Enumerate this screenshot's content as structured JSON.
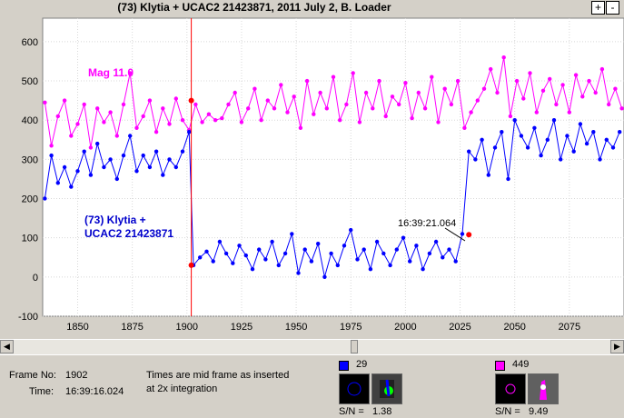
{
  "window": {
    "title": "(73) Klytia + UCAC2 21423871,   2011 July 2,   B. Loader"
  },
  "toolbar": {
    "plus_label": "+",
    "minus_label": "-"
  },
  "chart_data": {
    "type": "line",
    "xlim": [
      1834,
      2100
    ],
    "ylim": [
      -100,
      660
    ],
    "xticks": [
      1850,
      1875,
      1900,
      1925,
      1950,
      1975,
      2000,
      2025,
      2050,
      2075
    ],
    "yticks": [
      -100,
      0,
      100,
      200,
      300,
      400,
      500,
      600
    ],
    "grid": true,
    "series": [
      {
        "name": "Mag 11.0",
        "color": "#ff00ff",
        "x": [
          1835,
          1838,
          1841,
          1844,
          1847,
          1850,
          1853,
          1856,
          1859,
          1862,
          1865,
          1868,
          1871,
          1874,
          1877,
          1880,
          1883,
          1886,
          1889,
          1892,
          1895,
          1898,
          1901,
          1904,
          1907,
          1910,
          1913,
          1916,
          1919,
          1922,
          1925,
          1928,
          1931,
          1934,
          1937,
          1940,
          1943,
          1946,
          1949,
          1952,
          1955,
          1958,
          1961,
          1964,
          1967,
          1970,
          1973,
          1976,
          1979,
          1982,
          1985,
          1988,
          1991,
          1994,
          1997,
          2000,
          2003,
          2006,
          2009,
          2012,
          2015,
          2018,
          2021,
          2024,
          2027,
          2030,
          2033,
          2036,
          2039,
          2042,
          2045,
          2048,
          2051,
          2054,
          2057,
          2060,
          2063,
          2066,
          2069,
          2072,
          2075,
          2078,
          2081,
          2084,
          2087,
          2090,
          2093,
          2096,
          2099
        ],
        "y": [
          445,
          335,
          410,
          450,
          360,
          390,
          440,
          330,
          430,
          395,
          420,
          360,
          440,
          520,
          380,
          410,
          450,
          370,
          430,
          390,
          455,
          400,
          375,
          440,
          395,
          415,
          400,
          405,
          440,
          470,
          395,
          430,
          480,
          400,
          450,
          430,
          490,
          420,
          460,
          380,
          500,
          415,
          470,
          430,
          510,
          400,
          440,
          520,
          395,
          470,
          430,
          500,
          410,
          460,
          440,
          495,
          405,
          470,
          430,
          510,
          395,
          480,
          440,
          500,
          380,
          420,
          450,
          480,
          530,
          470,
          560,
          410,
          500,
          455,
          520,
          420,
          475,
          505,
          440,
          490,
          420,
          515,
          460,
          500,
          470,
          530,
          440,
          480,
          430
        ]
      },
      {
        "name": "(73) Klytia + UCAC2 21423871",
        "color": "#0000ff",
        "x": [
          1835,
          1838,
          1841,
          1844,
          1847,
          1850,
          1853,
          1856,
          1859,
          1862,
          1865,
          1868,
          1871,
          1874,
          1877,
          1880,
          1883,
          1886,
          1889,
          1892,
          1895,
          1898,
          1901,
          1903,
          1906,
          1909,
          1912,
          1915,
          1918,
          1921,
          1924,
          1927,
          1930,
          1933,
          1936,
          1939,
          1942,
          1945,
          1948,
          1951,
          1954,
          1957,
          1960,
          1963,
          1966,
          1969,
          1972,
          1975,
          1978,
          1981,
          1984,
          1987,
          1990,
          1993,
          1996,
          1999,
          2002,
          2005,
          2008,
          2011,
          2014,
          2017,
          2020,
          2023,
          2026,
          2029,
          2032,
          2035,
          2038,
          2041,
          2044,
          2047,
          2050,
          2053,
          2056,
          2059,
          2062,
          2065,
          2068,
          2071,
          2074,
          2077,
          2080,
          2083,
          2086,
          2089,
          2092,
          2095,
          2098
        ],
        "y": [
          200,
          310,
          240,
          280,
          230,
          270,
          320,
          260,
          340,
          280,
          300,
          250,
          310,
          360,
          270,
          310,
          280,
          320,
          260,
          300,
          280,
          320,
          370,
          30,
          50,
          65,
          40,
          90,
          60,
          35,
          80,
          55,
          20,
          70,
          45,
          90,
          30,
          60,
          110,
          10,
          70,
          40,
          85,
          0,
          60,
          30,
          80,
          120,
          45,
          70,
          20,
          90,
          60,
          30,
          70,
          100,
          40,
          80,
          20,
          60,
          90,
          50,
          70,
          40,
          110,
          320,
          300,
          350,
          260,
          330,
          370,
          250,
          400,
          360,
          330,
          380,
          310,
          350,
          400,
          300,
          360,
          320,
          390,
          340,
          370,
          300,
          350,
          330,
          370
        ]
      }
    ],
    "markers": [
      {
        "x": 1902,
        "y": 450,
        "color": "#ff0000"
      },
      {
        "x": 1902,
        "y": 30,
        "color": "#ff0000"
      },
      {
        "x": 2029,
        "y": 108,
        "color": "#ff0000"
      }
    ],
    "cursor_x": 1902,
    "labels": {
      "mag": "Mag 11.0",
      "target_line1": "(73) Klytia +",
      "target_line2": "UCAC2 21423871",
      "annotation": "16:39:21.064"
    }
  },
  "status": {
    "frame_label": "Frame No:",
    "frame_value": "1902",
    "time_label": "Time:",
    "time_value": "16:39:16.024",
    "note_line1": "Times are mid frame as inserted",
    "note_line2": "at 2x integration"
  },
  "star1": {
    "color": "#0000ff",
    "id": "29",
    "sn_label": "S/N =",
    "sn_value": "1.38"
  },
  "star2": {
    "color": "#ff00ff",
    "id": "449",
    "sn_label": "S/N =",
    "sn_value": "9.49"
  }
}
